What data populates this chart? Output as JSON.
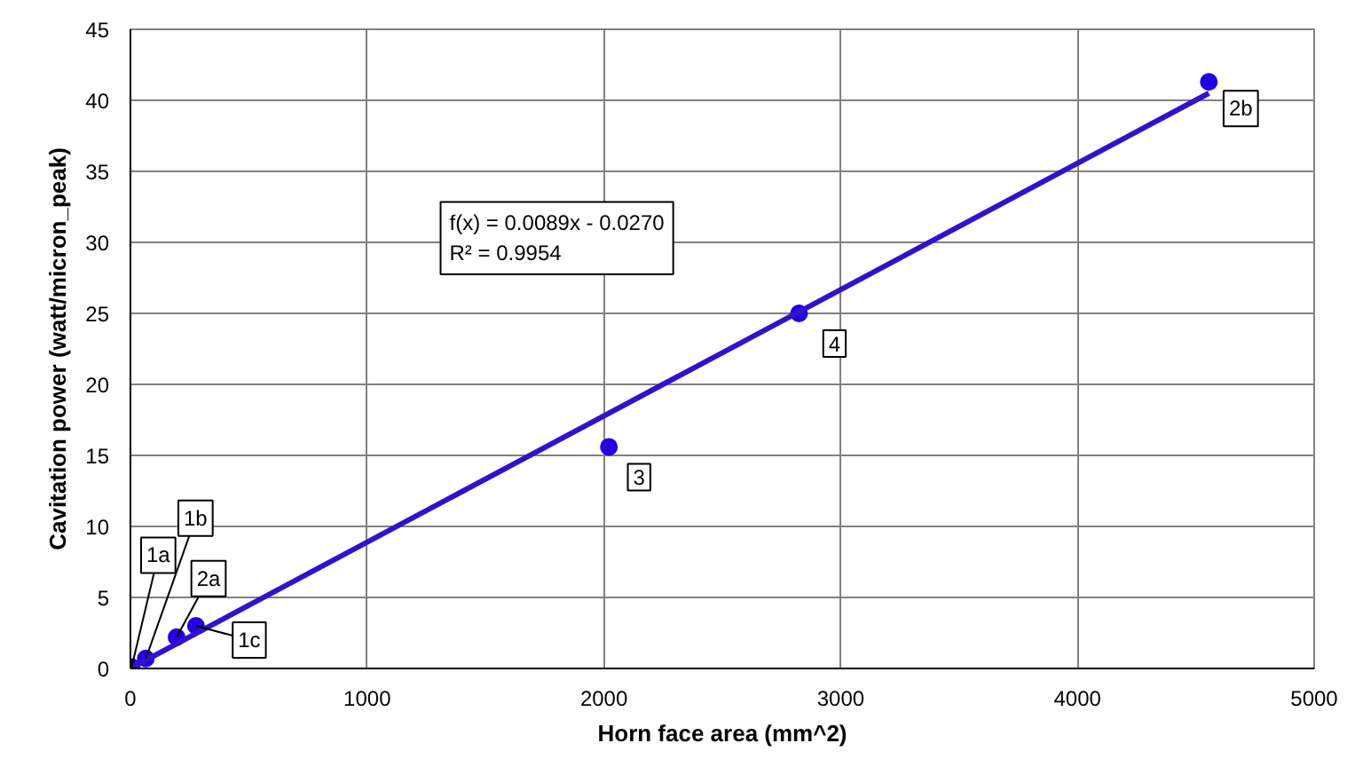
{
  "chart_data": {
    "type": "scatter",
    "xlabel": "Horn face area (mm^2)",
    "ylabel": "Cavitation power (watt/micron_peak)",
    "xlim": [
      0,
      5000
    ],
    "ylim": [
      0,
      45
    ],
    "xticks": [
      0,
      1000,
      2000,
      3000,
      4000,
      5000
    ],
    "yticks": [
      0,
      5,
      10,
      15,
      20,
      25,
      30,
      35,
      40,
      45
    ],
    "grid": true,
    "series": [
      {
        "color": "#2000e0",
        "marker": "circle",
        "x": [
          5,
          65,
          195,
          277,
          2021,
          2824,
          4555
        ],
        "values": [
          0.1,
          0.7,
          2.2,
          3.0,
          15.6,
          25.0,
          41.3
        ]
      },
      {
        "type": "line",
        "color": "#3311cc",
        "marker": "none",
        "x": [
          0,
          4555
        ],
        "values": [
          0,
          40.5
        ],
        "line_style": "solid"
      }
    ],
    "annotations": [
      {
        "text": "1a",
        "x": 5,
        "y": 0.1
      },
      {
        "text": "1b",
        "x": 65,
        "y": 0.7
      },
      {
        "text": "2a",
        "x": 195,
        "y": 2.2
      },
      {
        "text": "1c",
        "x": 277,
        "y": 3.0
      },
      {
        "text": "3",
        "x": 2021,
        "y": 15.6
      },
      {
        "text": "4",
        "x": 2824,
        "y": 25.0
      },
      {
        "text": "2b",
        "x": 4555,
        "y": 41.3
      },
      "f(x) = 0.0089x - 0.0270\nR² = 0.9954"
    ]
  }
}
